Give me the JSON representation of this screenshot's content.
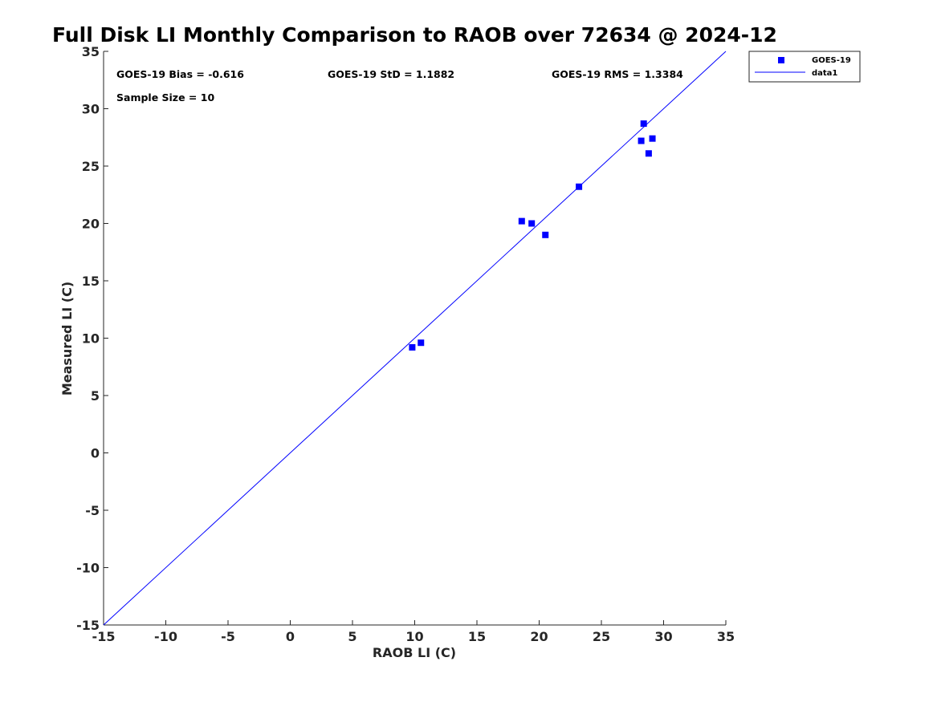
{
  "chart_data": {
    "type": "scatter",
    "title": "Full Disk LI Monthly Comparison to RAOB over 72634 @ 2024-12",
    "xlabel": "RAOB LI (C)",
    "ylabel": "Measured LI (C)",
    "xlim": [
      -15,
      35
    ],
    "ylim": [
      -15,
      35
    ],
    "xticks": [
      -15,
      -10,
      -5,
      0,
      5,
      10,
      15,
      20,
      25,
      30,
      35
    ],
    "yticks": [
      -15,
      -10,
      -5,
      0,
      5,
      10,
      15,
      20,
      25,
      30,
      35
    ],
    "xtick_labels": [
      "-15",
      "-10",
      "-5",
      "0",
      "5",
      "10",
      "15",
      "20",
      "25",
      "30",
      "35"
    ],
    "ytick_labels": [
      "-15",
      "-10",
      "-5",
      "0",
      "5",
      "10",
      "15",
      "20",
      "25",
      "30",
      "35"
    ],
    "grid": false,
    "legend_position": "outside-top-right",
    "series": [
      {
        "name": "GOES-19",
        "marker": "square",
        "color": "#0000ff",
        "points": [
          {
            "x": 9.8,
            "y": 9.2
          },
          {
            "x": 10.5,
            "y": 9.6
          },
          {
            "x": 18.6,
            "y": 20.2
          },
          {
            "x": 19.4,
            "y": 20.0
          },
          {
            "x": 20.5,
            "y": 19.0
          },
          {
            "x": 23.2,
            "y": 23.2
          },
          {
            "x": 28.2,
            "y": 27.2
          },
          {
            "x": 28.4,
            "y": 28.7
          },
          {
            "x": 28.8,
            "y": 26.1
          },
          {
            "x": 29.1,
            "y": 27.4
          }
        ]
      },
      {
        "name": "data1",
        "type": "line",
        "color": "#0000ff",
        "points": [
          {
            "x": -15,
            "y": -15
          },
          {
            "x": 35,
            "y": 35
          }
        ]
      }
    ],
    "annotations": {
      "bias": "GOES-19 Bias = -0.616",
      "std": "GOES-19 StD = 1.1882",
      "rms": "GOES-19 RMS = 1.3384",
      "sample_size": "Sample Size = 10"
    },
    "legend": [
      "GOES-19",
      "data1"
    ]
  }
}
